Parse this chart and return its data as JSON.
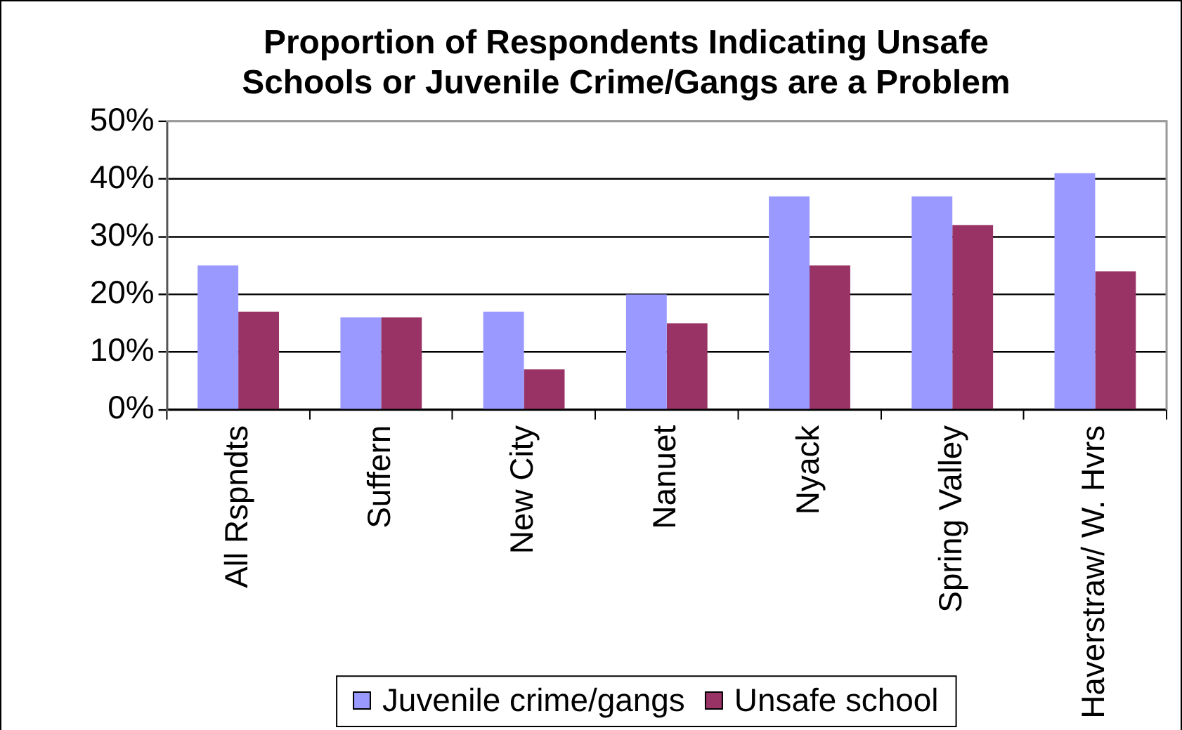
{
  "chart_data": {
    "type": "bar",
    "title": "Proportion of Respondents Indicating Unsafe\nSchools or Juvenile Crime/Gangs are a Problem",
    "categories": [
      "All Rspndts",
      "Suffern",
      "New City",
      "Nanuet",
      "Nyack",
      "Spring Valley",
      "Haverstraw/ W. Hvrs"
    ],
    "series": [
      {
        "name": "Juvenile crime/gangs",
        "color": "#9999ff",
        "values": [
          25,
          16,
          17,
          20,
          37,
          37,
          41
        ]
      },
      {
        "name": "Unsafe school",
        "color": "#993366",
        "values": [
          17,
          16,
          7,
          15,
          25,
          32,
          24
        ]
      }
    ],
    "ylim": [
      0,
      50
    ],
    "yticks": [
      {
        "value": 0,
        "label": "0%"
      },
      {
        "value": 10,
        "label": "10%"
      },
      {
        "value": 20,
        "label": "20%"
      },
      {
        "value": 30,
        "label": "30%"
      },
      {
        "value": 40,
        "label": "40%"
      },
      {
        "value": 50,
        "label": "50%"
      }
    ],
    "grid": "y",
    "legend": "bottom"
  }
}
